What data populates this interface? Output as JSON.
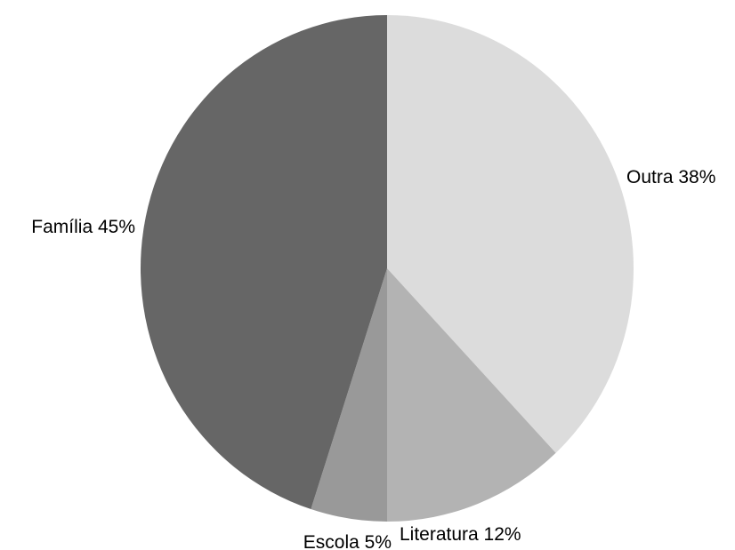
{
  "chart_data": {
    "type": "pie",
    "title": "",
    "slices": [
      {
        "label": "Outra 38%",
        "value": 38,
        "color": "#dcdcdc"
      },
      {
        "label": "Literatura 12%",
        "value": 12,
        "color": "#b3b3b3"
      },
      {
        "label": "Escola 5%",
        "value": 5,
        "color": "#999999"
      },
      {
        "label": "Família 45%",
        "value": 45,
        "color": "#666666"
      }
    ],
    "start_angle": "12 o'clock",
    "direction": "clockwise",
    "legend": "none"
  }
}
